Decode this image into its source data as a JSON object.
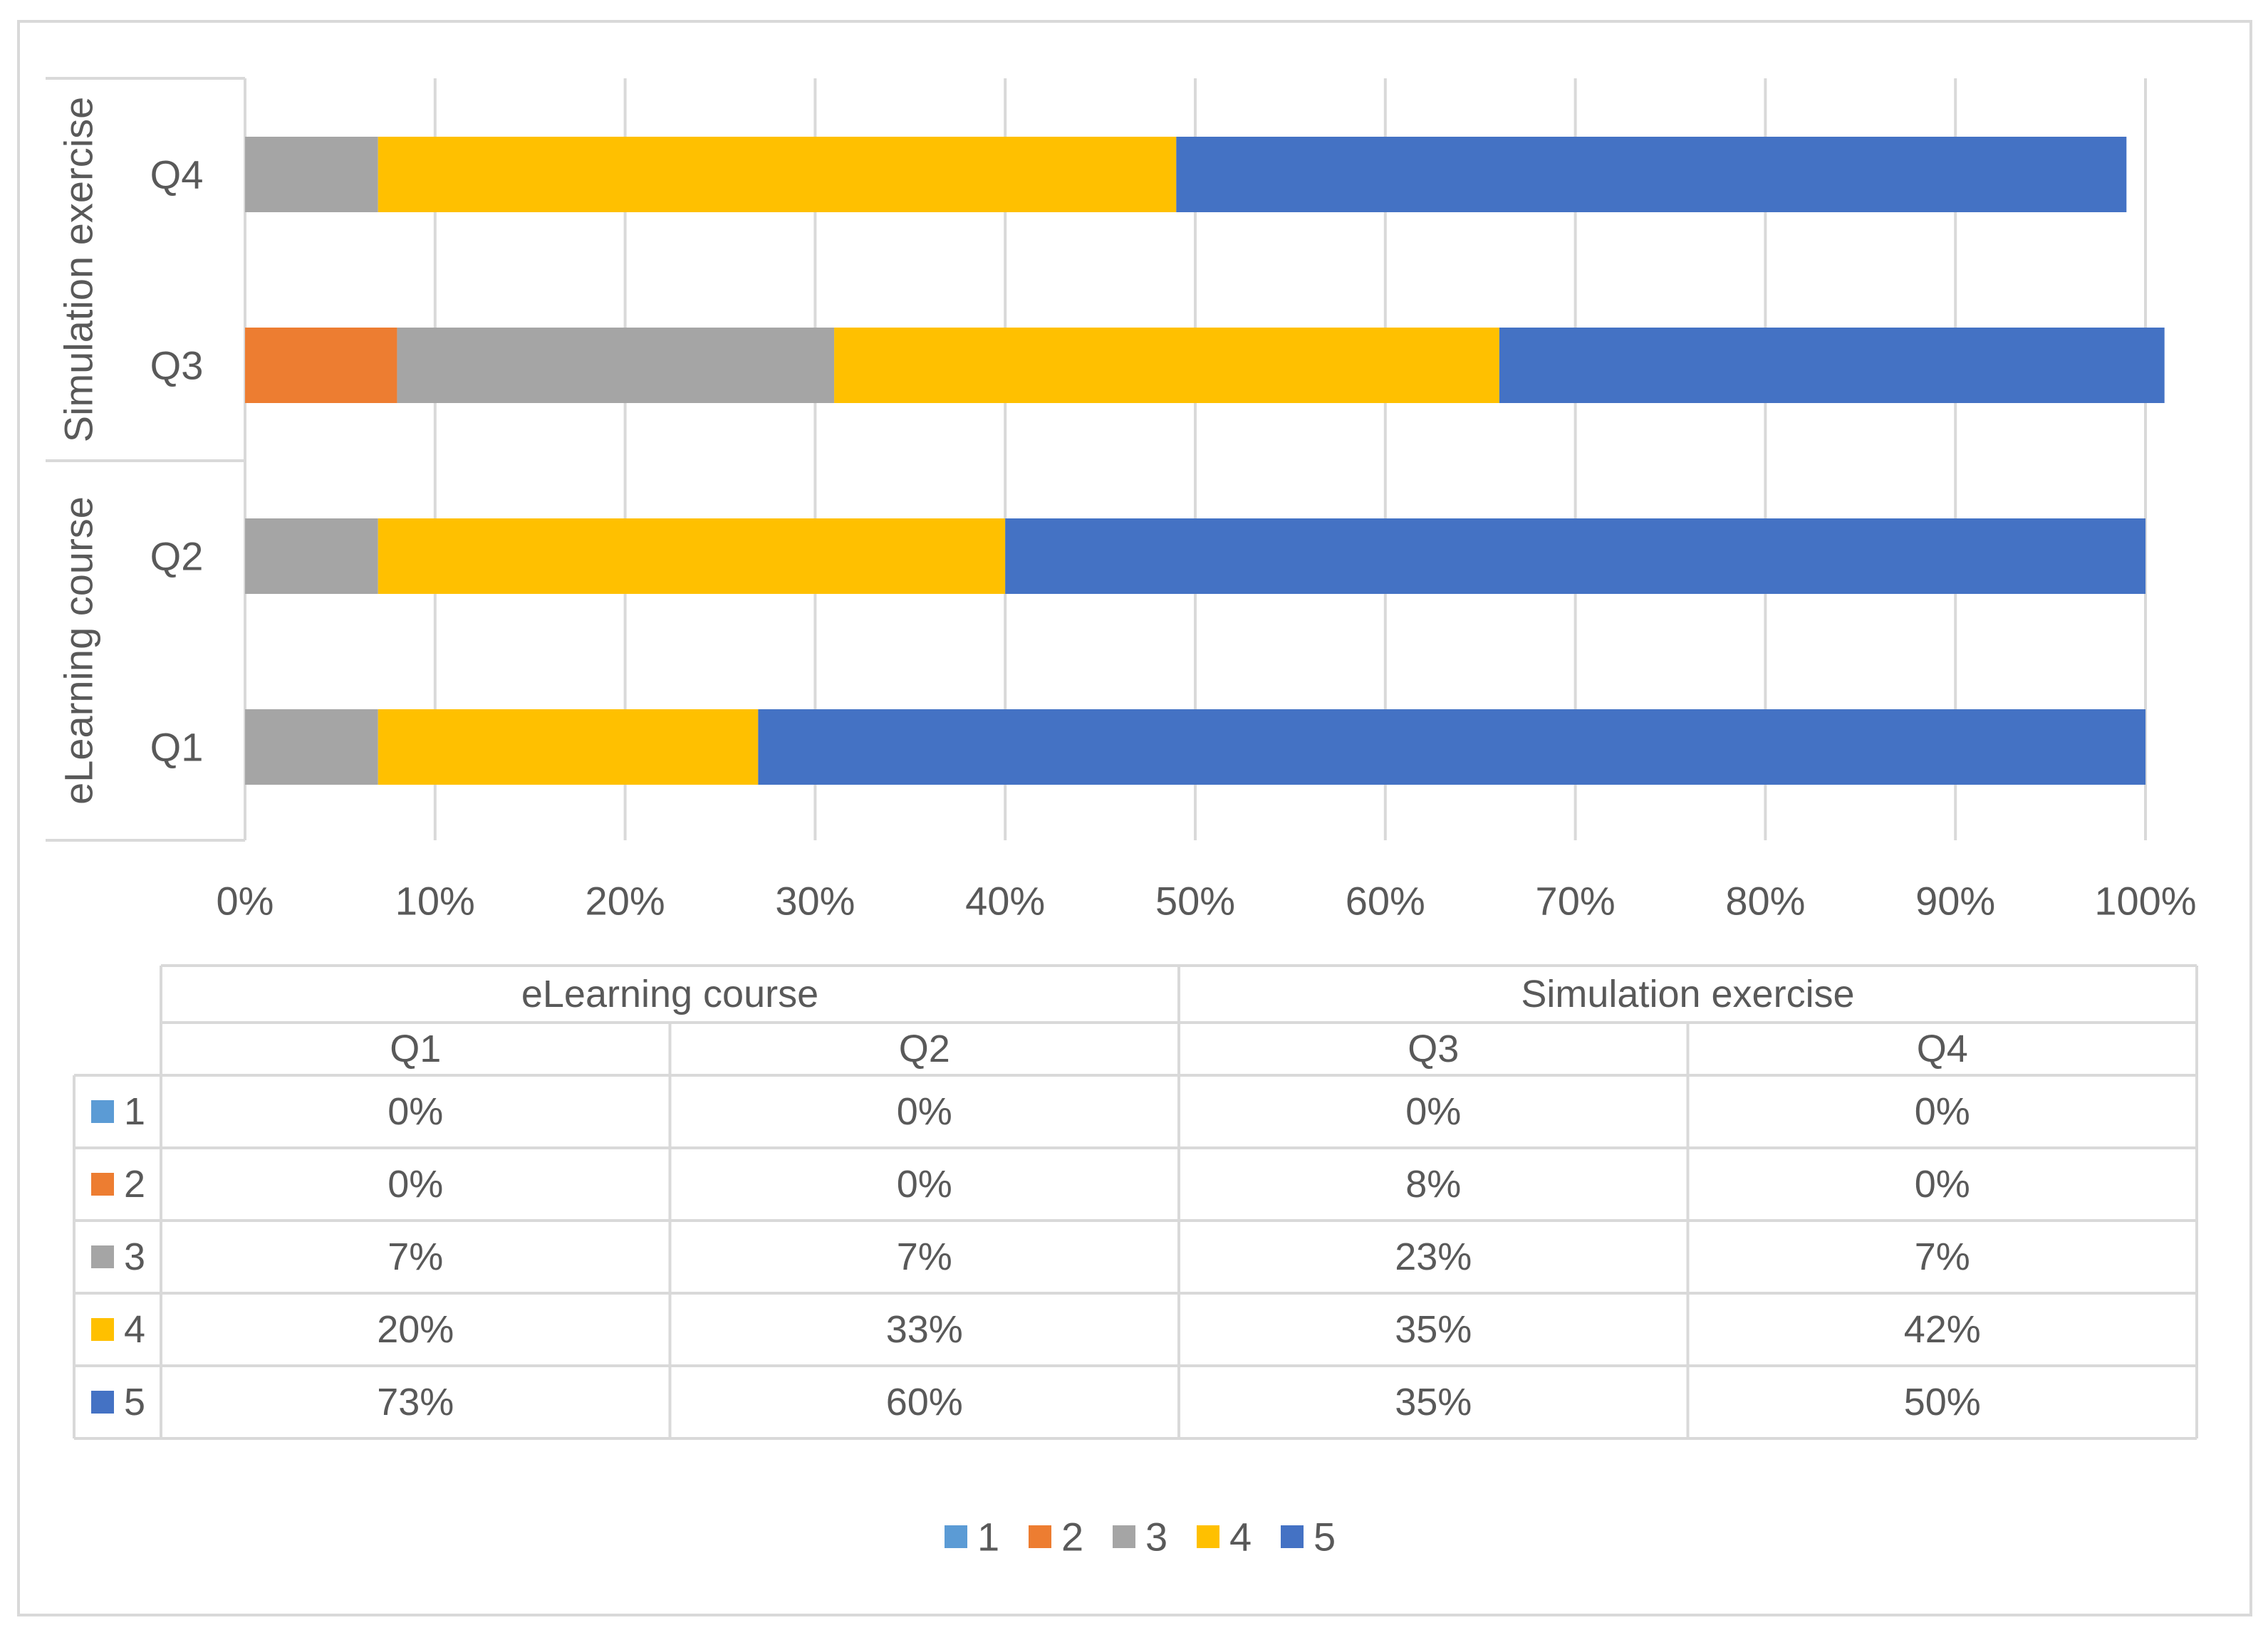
{
  "chart_data": {
    "type": "bar",
    "orientation": "horizontal",
    "stacked": "percent",
    "title": "",
    "xlabel": "",
    "ylabel": "",
    "xlim": [
      0,
      100
    ],
    "x_ticks": [
      "0%",
      "10%",
      "20%",
      "30%",
      "40%",
      "50%",
      "60%",
      "70%",
      "80%",
      "90%",
      "100%"
    ],
    "groups": [
      {
        "name": "eLearning course",
        "categories": [
          "Q1",
          "Q2"
        ]
      },
      {
        "name": "Simulation exercise",
        "categories": [
          "Q3",
          "Q4"
        ]
      }
    ],
    "categories": [
      "Q1",
      "Q2",
      "Q3",
      "Q4"
    ],
    "series": [
      {
        "name": "1",
        "color": "#5B9BD5",
        "values": [
          0,
          0,
          0,
          0
        ],
        "labels": [
          "0%",
          "0%",
          "0%",
          "0%"
        ]
      },
      {
        "name": "2",
        "color": "#ED7D31",
        "values": [
          0,
          0,
          8,
          0
        ],
        "labels": [
          "0%",
          "0%",
          "8%",
          "0%"
        ]
      },
      {
        "name": "3",
        "color": "#A5A5A5",
        "values": [
          7,
          7,
          23,
          7
        ],
        "labels": [
          "7%",
          "7%",
          "23%",
          "7%"
        ]
      },
      {
        "name": "4",
        "color": "#FFC000",
        "values": [
          20,
          33,
          35,
          42
        ],
        "labels": [
          "20%",
          "33%",
          "35%",
          "42%"
        ]
      },
      {
        "name": "5",
        "color": "#4472C4",
        "values": [
          73,
          60,
          35,
          50
        ],
        "labels": [
          "73%",
          "60%",
          "35%",
          "50%"
        ]
      }
    ],
    "grid": true,
    "data_table": true,
    "legend_position": "bottom"
  }
}
